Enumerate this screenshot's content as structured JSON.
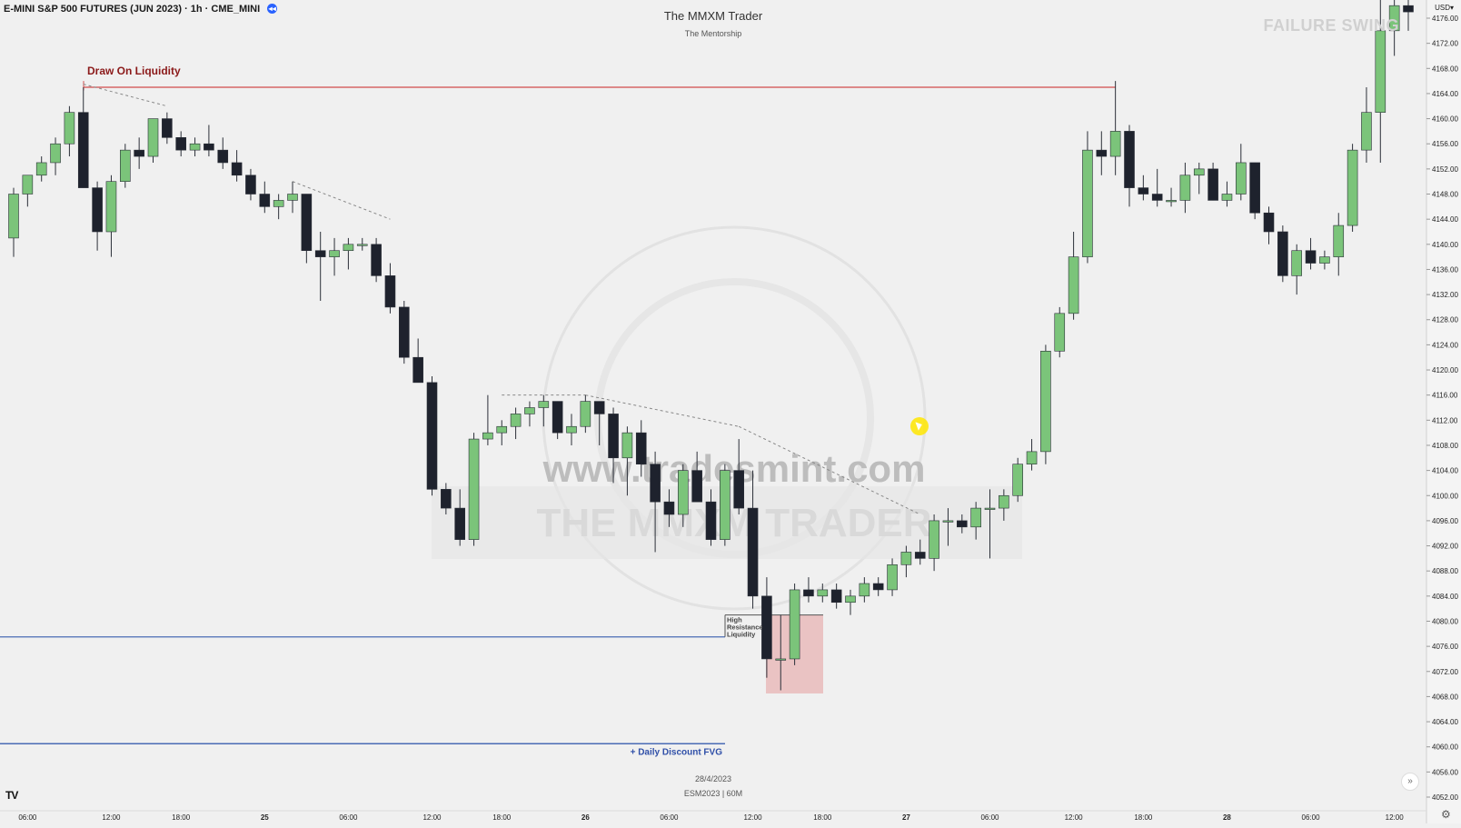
{
  "header": {
    "symbol": "E-MINI S&P 500 FUTURES (JUN 2023) · 1h · CME_MINI",
    "badge": "◂◂",
    "title": "The MMXM Trader",
    "subtitle": "The Mentorship",
    "corner_label": "FAILURE SWING",
    "currency": "USD▾"
  },
  "footer": {
    "date": "28/4/2023",
    "symbol": "ESM2023 | 60M",
    "logo": "TV"
  },
  "watermarks": {
    "site": "www.tradesmint.com",
    "brand": "THE MMXM TRADER"
  },
  "annotations": {
    "draw_on_liquidity": "Draw On Liquidity",
    "high_resistance": [
      "High",
      "Resistance",
      "Liquidity"
    ],
    "daily_fvg": "+ Daily Discount FVG"
  },
  "colors": {
    "background": "#f0f0f0",
    "bull": "#7bc47a",
    "bear": "#1e222d",
    "draw_line": "#d14b4b",
    "draw_label": "#8b1a1a",
    "blue_line": "#4a6bb5",
    "fvg_label": "#2f4fa8",
    "zone": "#e8b4b4"
  },
  "chart_data": {
    "type": "candlestick",
    "timeframe": "1h",
    "ylim": [
      4050,
      4178
    ],
    "y_ticks": [
      4052,
      4056,
      4060,
      4064,
      4068,
      4072,
      4076,
      4080,
      4084,
      4088,
      4092,
      4096,
      4100,
      4104,
      4108,
      4112,
      4116,
      4120,
      4124,
      4128,
      4132,
      4136,
      4140,
      4144,
      4148,
      4152,
      4156,
      4160,
      4164,
      4168,
      4172,
      4176
    ],
    "x_ticks": [
      {
        "label": "06:00",
        "i": 1
      },
      {
        "label": "12:00",
        "i": 7
      },
      {
        "label": "18:00",
        "i": 12
      },
      {
        "label": "25",
        "i": 18
      },
      {
        "label": "06:00",
        "i": 24
      },
      {
        "label": "12:00",
        "i": 30
      },
      {
        "label": "18:00",
        "i": 35
      },
      {
        "label": "26",
        "i": 41
      },
      {
        "label": "06:00",
        "i": 47
      },
      {
        "label": "12:00",
        "i": 53
      },
      {
        "label": "18:00",
        "i": 58
      },
      {
        "label": "27",
        "i": 64
      },
      {
        "label": "06:00",
        "i": 70
      },
      {
        "label": "12:00",
        "i": 76
      },
      {
        "label": "18:00",
        "i": 81
      },
      {
        "label": "28",
        "i": 87
      },
      {
        "label": "06:00",
        "i": 93
      },
      {
        "label": "12:00",
        "i": 99
      }
    ],
    "candles": [
      [
        4141,
        4149,
        4138,
        4148
      ],
      [
        4148,
        4151,
        4146,
        4151
      ],
      [
        4151,
        4154,
        4150,
        4153
      ],
      [
        4153,
        4157,
        4151,
        4156
      ],
      [
        4156,
        4162,
        4154,
        4161
      ],
      [
        4161,
        4165,
        4149,
        4149
      ],
      [
        4149,
        4150,
        4139,
        4142
      ],
      [
        4142,
        4151,
        4138,
        4150
      ],
      [
        4150,
        4156,
        4149,
        4155
      ],
      [
        4155,
        4157,
        4152,
        4154
      ],
      [
        4154,
        4160,
        4153,
        4160
      ],
      [
        4160,
        4161,
        4156,
        4157
      ],
      [
        4157,
        4158,
        4154,
        4155
      ],
      [
        4155,
        4157,
        4154,
        4156
      ],
      [
        4156,
        4159,
        4154,
        4155
      ],
      [
        4155,
        4157,
        4152,
        4153
      ],
      [
        4153,
        4155,
        4150,
        4151
      ],
      [
        4151,
        4152,
        4147,
        4148
      ],
      [
        4148,
        4150,
        4145,
        4146
      ],
      [
        4146,
        4148,
        4144,
        4147
      ],
      [
        4147,
        4150,
        4145,
        4148
      ],
      [
        4148,
        4148,
        4137,
        4139
      ],
      [
        4139,
        4142,
        4131,
        4138
      ],
      [
        4138,
        4141,
        4135,
        4139
      ],
      [
        4139,
        4141,
        4136,
        4140
      ],
      [
        4140,
        4141,
        4139,
        4140
      ],
      [
        4140,
        4141,
        4134,
        4135
      ],
      [
        4135,
        4137,
        4129,
        4130
      ],
      [
        4130,
        4131,
        4121,
        4122
      ],
      [
        4122,
        4125,
        4118,
        4118
      ],
      [
        4118,
        4119,
        4100,
        4101
      ],
      [
        4101,
        4102,
        4097,
        4098
      ],
      [
        4098,
        4101,
        4092,
        4093
      ],
      [
        4093,
        4110,
        4092,
        4109
      ],
      [
        4109,
        4116,
        4108,
        4110
      ],
      [
        4110,
        4112,
        4108,
        4111
      ],
      [
        4111,
        4114,
        4109,
        4113
      ],
      [
        4113,
        4115,
        4111,
        4114
      ],
      [
        4114,
        4116,
        4111,
        4115
      ],
      [
        4115,
        4115,
        4109,
        4110
      ],
      [
        4110,
        4113,
        4108,
        4111
      ],
      [
        4111,
        4116,
        4110,
        4115
      ],
      [
        4115,
        4115,
        4108,
        4113
      ],
      [
        4113,
        4114,
        4102,
        4106
      ],
      [
        4106,
        4111,
        4100,
        4110
      ],
      [
        4110,
        4112,
        4103,
        4105
      ],
      [
        4105,
        4107,
        4091,
        4099
      ],
      [
        4099,
        4101,
        4095,
        4097
      ],
      [
        4097,
        4105,
        4095,
        4104
      ],
      [
        4104,
        4107,
        4100,
        4099
      ],
      [
        4099,
        4101,
        4092,
        4093
      ],
      [
        4093,
        4105,
        4092,
        4104
      ],
      [
        4104,
        4109,
        4097,
        4098
      ],
      [
        4098,
        4104,
        4082,
        4084
      ],
      [
        4084,
        4087,
        4071,
        4074
      ],
      [
        4074,
        4081,
        4069,
        4074
      ],
      [
        4074,
        4086,
        4073,
        4085
      ],
      [
        4085,
        4087,
        4083,
        4084
      ],
      [
        4084,
        4086,
        4083,
        4085
      ],
      [
        4085,
        4086,
        4082,
        4083
      ],
      [
        4083,
        4085,
        4081,
        4084
      ],
      [
        4084,
        4087,
        4083,
        4086
      ],
      [
        4086,
        4087,
        4084,
        4085
      ],
      [
        4085,
        4090,
        4084,
        4089
      ],
      [
        4089,
        4092,
        4087,
        4091
      ],
      [
        4091,
        4093,
        4089,
        4090
      ],
      [
        4090,
        4097,
        4088,
        4096
      ],
      [
        4096,
        4098,
        4092,
        4096
      ],
      [
        4096,
        4097,
        4094,
        4095
      ],
      [
        4095,
        4099,
        4093,
        4098
      ],
      [
        4098,
        4101,
        4090,
        4098
      ],
      [
        4098,
        4101,
        4096,
        4100
      ],
      [
        4100,
        4106,
        4099,
        4105
      ],
      [
        4105,
        4109,
        4104,
        4107
      ],
      [
        4107,
        4124,
        4105,
        4123
      ],
      [
        4123,
        4130,
        4122,
        4129
      ],
      [
        4129,
        4142,
        4128,
        4138
      ],
      [
        4138,
        4158,
        4137,
        4155
      ],
      [
        4155,
        4158,
        4151,
        4154
      ],
      [
        4154,
        4166,
        4151,
        4158
      ],
      [
        4158,
        4159,
        4146,
        4149
      ],
      [
        4149,
        4151,
        4147,
        4148
      ],
      [
        4148,
        4152,
        4146,
        4147
      ],
      [
        4147,
        4149,
        4146,
        4147
      ],
      [
        4147,
        4153,
        4145,
        4151
      ],
      [
        4151,
        4153,
        4148,
        4152
      ],
      [
        4152,
        4153,
        4147,
        4147
      ],
      [
        4147,
        4150,
        4146,
        4148
      ],
      [
        4148,
        4156,
        4147,
        4153
      ],
      [
        4153,
        4153,
        4144,
        4145
      ],
      [
        4145,
        4146,
        4140,
        4142
      ],
      [
        4142,
        4143,
        4134,
        4135
      ],
      [
        4135,
        4140,
        4132,
        4139
      ],
      [
        4139,
        4141,
        4136,
        4137
      ],
      [
        4137,
        4139,
        4136,
        4138
      ],
      [
        4138,
        4145,
        4135,
        4143
      ],
      [
        4143,
        4156,
        4142,
        4155
      ],
      [
        4155,
        4165,
        4153,
        4161
      ],
      [
        4161,
        4179,
        4153,
        4174
      ],
      [
        4174,
        4180,
        4170,
        4178
      ],
      [
        4178,
        4180,
        4174,
        4177
      ]
    ]
  }
}
